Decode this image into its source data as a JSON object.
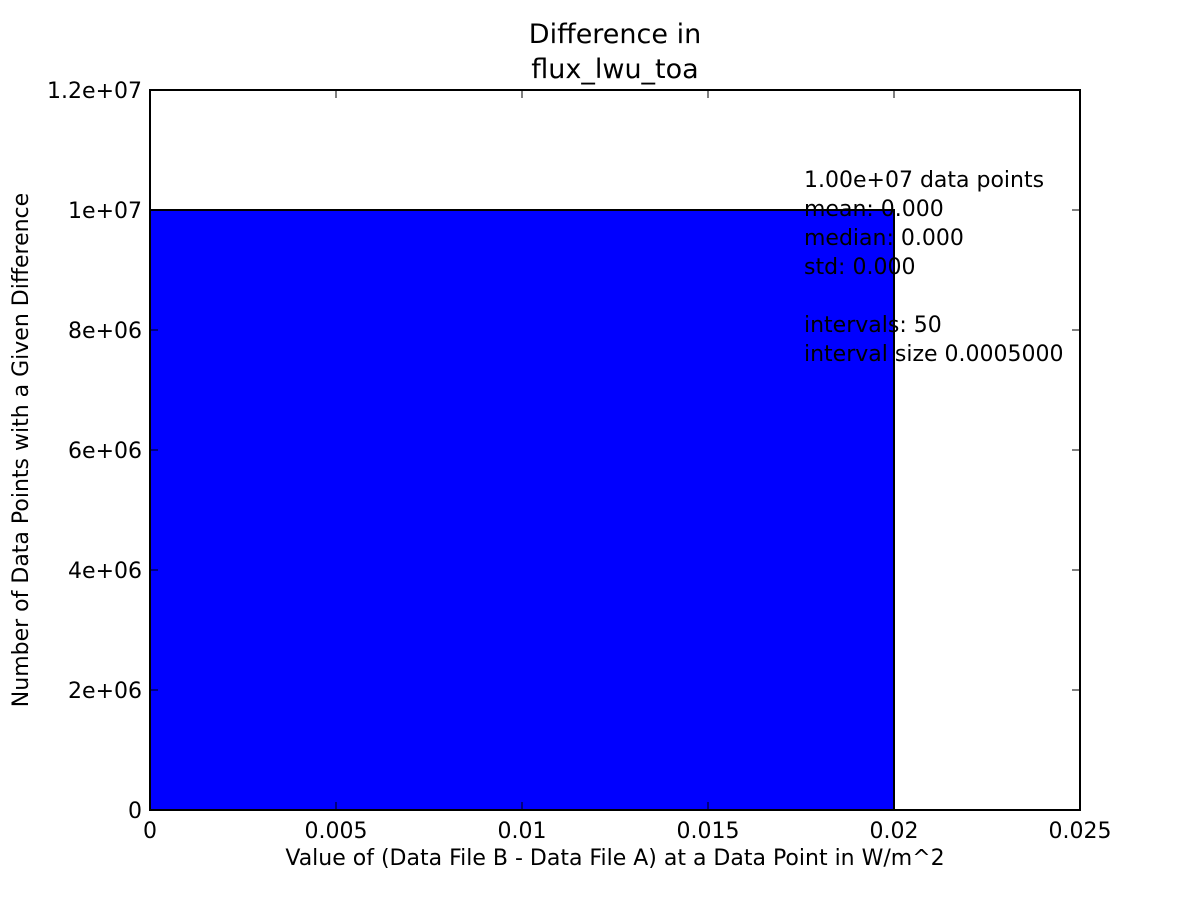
{
  "chart_data": {
    "type": "bar",
    "title_lines": [
      "Difference in",
      "flux_lwu_toa"
    ],
    "xlabel": "Value of (Data File B - Data File A) at a Data Point in W/m^2",
    "ylabel": "Number of Data Points with a Given Difference",
    "xlim": [
      0,
      0.025
    ],
    "ylim": [
      0,
      12000000
    ],
    "x_ticks": [
      0,
      0.005,
      0.01,
      0.015,
      0.02,
      0.025
    ],
    "x_tick_labels": [
      "0",
      "0.005",
      "0.01",
      "0.015",
      "0.02",
      "0.025"
    ],
    "y_ticks": [
      0,
      2000000,
      4000000,
      6000000,
      8000000,
      10000000,
      12000000
    ],
    "y_tick_labels": [
      "0",
      "2e+06",
      "4e+06",
      "6e+06",
      "8e+06",
      "1e+07",
      "1.2e+07"
    ],
    "grid": false,
    "bars": [
      {
        "x0": 0,
        "x1": 0.02,
        "value": 10000000
      }
    ],
    "bar_color": "#0000ff",
    "stats_lines": [
      "1.00e+07 data points",
      "mean: 0.000",
      "median: 0.000",
      "std: 0.000",
      "",
      "intervals: 50",
      "interval size 0.0005000"
    ]
  }
}
